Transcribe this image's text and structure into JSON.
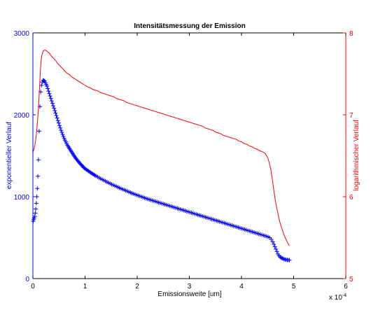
{
  "chart_data": {
    "type": "line",
    "title": "Intensitätsmessung der Emission",
    "xlabel": "Emissionsweite [um]",
    "x_multiplier_label": "x 10",
    "x_multiplier_exponent": "-4",
    "ylabel_left": "exponentieller Verlauf",
    "ylabel_right": "logarithmischer Verlauf",
    "xlim": [
      0,
      0.0006
    ],
    "ylim_left": [
      0,
      3000
    ],
    "ylim_right": [
      5,
      8
    ],
    "x_ticks": [
      0,
      0.0001,
      0.0002,
      0.0003,
      0.0004,
      0.0005,
      0.0006
    ],
    "x_tick_labels": [
      "0",
      "1",
      "2",
      "3",
      "4",
      "5",
      "6"
    ],
    "y_left_ticks": [
      0,
      1000,
      2000,
      3000
    ],
    "y_left_tick_labels": [
      "0",
      "1000",
      "2000",
      "3000"
    ],
    "y_right_ticks": [
      5,
      6,
      7,
      8
    ],
    "y_right_tick_labels": [
      "5",
      "6",
      "7",
      "8"
    ],
    "grid": false,
    "colors": {
      "left_axis": "#0000ff",
      "right_axis": "#ff0000",
      "frame": "#000000"
    },
    "series": [
      {
        "axis": "left",
        "marker": "+",
        "color": "#0000ff",
        "x": [
          5e-07,
          1.5e-06,
          2.5e-06,
          3.5e-06,
          4.5e-06,
          5.5e-06,
          6.5e-06,
          7.5e-06,
          8.5e-06,
          9.5e-06,
          1.05e-05,
          1.2e-05,
          1.35e-05,
          1.5e-05,
          1.65e-05,
          1.8e-05,
          1.95e-05,
          2.1e-05,
          2.25e-05,
          2.4e-05,
          2.55e-05,
          2.7e-05,
          2.85e-05,
          3e-05,
          3.15e-05,
          3.3e-05,
          3.45e-05,
          3.6e-05,
          3.75e-05,
          3.9e-05,
          4.05e-05,
          4.2e-05,
          4.35e-05,
          4.5e-05,
          4.65e-05,
          4.8e-05,
          4.95e-05,
          5.1e-05,
          5.25e-05,
          5.4e-05,
          5.55e-05,
          5.7e-05,
          5.85e-05,
          6e-05,
          6.15e-05,
          6.3e-05,
          6.45e-05,
          6.6e-05,
          6.75e-05,
          6.9e-05,
          7.05e-05,
          7.2e-05,
          7.35e-05,
          7.5e-05,
          7.65e-05,
          7.8e-05,
          7.95e-05,
          8.1e-05,
          8.25e-05,
          8.4e-05,
          8.55e-05,
          8.7e-05,
          8.85e-05,
          9e-05,
          9.15e-05,
          9.3e-05,
          9.45e-05,
          9.6e-05,
          9.75e-05,
          9.9e-05,
          0.000101,
          0.000103,
          0.000105,
          0.000107,
          0.000109,
          0.000111,
          0.000113,
          0.000115,
          0.000117,
          0.000119,
          0.000121,
          0.000124,
          0.000127,
          0.00013,
          0.000133,
          0.000136,
          0.000139,
          0.000142,
          0.000145,
          0.000148,
          0.000151,
          0.000154,
          0.000157,
          0.00016,
          0.000163,
          0.000166,
          0.000169,
          0.000172,
          0.000175,
          0.000178,
          0.000181,
          0.000184,
          0.000187,
          0.00019,
          0.000193,
          0.000196,
          0.000199,
          0.000202,
          0.000205,
          0.000208,
          0.000211,
          0.000214,
          0.000217,
          0.00022,
          0.000223,
          0.000226,
          0.000229,
          0.000232,
          0.000235,
          0.000238,
          0.000241,
          0.000244,
          0.000247,
          0.00025,
          0.000253,
          0.000256,
          0.000259,
          0.000262,
          0.000265,
          0.000268,
          0.000271,
          0.000274,
          0.000277,
          0.00028,
          0.000283,
          0.000286,
          0.000289,
          0.000292,
          0.000295,
          0.000298,
          0.000301,
          0.000304,
          0.000307,
          0.00031,
          0.000313,
          0.000316,
          0.000319,
          0.000322,
          0.000325,
          0.000328,
          0.000331,
          0.000334,
          0.000337,
          0.00034,
          0.000343,
          0.000346,
          0.000349,
          0.000352,
          0.000355,
          0.000358,
          0.000361,
          0.000364,
          0.000367,
          0.00037,
          0.000373,
          0.000376,
          0.000379,
          0.000382,
          0.000385,
          0.000388,
          0.000391,
          0.000394,
          0.000397,
          0.0004,
          0.000403,
          0.000406,
          0.000409,
          0.000412,
          0.000415,
          0.000418,
          0.000421,
          0.000424,
          0.000427,
          0.00043,
          0.000433,
          0.000436,
          0.000439,
          0.000442,
          0.000445,
          0.000448,
          0.000451,
          0.000454,
          0.000457,
          0.00046,
          0.000462,
          0.000464,
          0.000466,
          0.000468,
          0.00047,
          0.000472,
          0.000474,
          0.000476,
          0.000478,
          0.00048,
          0.000482,
          0.000484,
          0.000486,
          0.000488,
          0.00049,
          0.000492
        ],
        "y": [
          700,
          720,
          740,
          760,
          800,
          850,
          920,
          1000,
          1100,
          1250,
          1450,
          1800,
          2100,
          2280,
          2360,
          2400,
          2420,
          2420,
          2410,
          2390,
          2370,
          2350,
          2320,
          2290,
          2260,
          2230,
          2200,
          2170,
          2140,
          2110,
          2080,
          2050,
          2020,
          1990,
          1960,
          1930,
          1900,
          1870,
          1840,
          1810,
          1785,
          1760,
          1735,
          1710,
          1690,
          1670,
          1650,
          1630,
          1615,
          1600,
          1585,
          1570,
          1555,
          1540,
          1525,
          1510,
          1495,
          1480,
          1468,
          1455,
          1443,
          1431,
          1420,
          1409,
          1398,
          1387,
          1377,
          1367,
          1357,
          1347,
          1338,
          1329,
          1320,
          1311,
          1302,
          1293,
          1285,
          1277,
          1269,
          1261,
          1253,
          1242,
          1231,
          1220,
          1210,
          1200,
          1190,
          1180,
          1170,
          1161,
          1152,
          1143,
          1134,
          1125,
          1116,
          1107,
          1099,
          1091,
          1083,
          1075,
          1067,
          1059,
          1051,
          1043,
          1035,
          1028,
          1021,
          1014,
          1007,
          1000,
          993,
          986,
          979,
          972,
          966,
          960,
          954,
          948,
          942,
          936,
          930,
          924,
          918,
          912,
          906,
          900,
          894,
          888,
          882,
          876,
          870,
          864,
          858,
          852,
          846,
          840,
          834,
          828,
          822,
          816,
          810,
          804,
          798,
          792,
          786,
          780,
          774,
          768,
          762,
          756,
          750,
          744,
          738,
          732,
          726,
          720,
          714,
          708,
          702,
          696,
          690,
          684,
          678,
          672,
          666,
          660,
          654,
          648,
          642,
          636,
          630,
          624,
          618,
          612,
          606,
          600,
          594,
          588,
          582,
          576,
          570,
          564,
          558,
          552,
          546,
          540,
          534,
          528,
          522,
          516,
          510,
          500,
          480,
          450,
          420,
          390,
          360,
          330,
          300,
          280,
          265,
          255,
          248,
          242,
          237,
          233,
          230,
          228,
          226,
          225
        ]
      },
      {
        "axis": "right",
        "marker": "line",
        "color": "#ff0000",
        "x": [
          5e-07,
          2e-06,
          3.5e-06,
          5e-06,
          6.5e-06,
          8e-06,
          9.5e-06,
          1.1e-05,
          1.25e-05,
          1.4e-05,
          1.55e-05,
          1.7e-05,
          1.85e-05,
          2e-05,
          2.2e-05,
          2.4e-05,
          2.6e-05,
          2.8e-05,
          3e-05,
          3.2e-05,
          3.5e-05,
          3.8e-05,
          4.1e-05,
          4.4e-05,
          4.7e-05,
          5e-05,
          5.3e-05,
          5.6e-05,
          5.9e-05,
          6.2e-05,
          6.5e-05,
          7e-05,
          7.5e-05,
          8e-05,
          8.5e-05,
          9e-05,
          9.5e-05,
          0.0001,
          0.000105,
          0.00011,
          0.000115,
          0.00012,
          0.000125,
          0.00013,
          0.000135,
          0.00014,
          0.000145,
          0.00015,
          0.000155,
          0.00016,
          0.000165,
          0.00017,
          0.000175,
          0.00018,
          0.000185,
          0.00019,
          0.000195,
          0.0002,
          0.000205,
          0.00021,
          0.000215,
          0.00022,
          0.000225,
          0.00023,
          0.000235,
          0.00024,
          0.000245,
          0.00025,
          0.000255,
          0.00026,
          0.000265,
          0.00027,
          0.000275,
          0.00028,
          0.000285,
          0.00029,
          0.000295,
          0.0003,
          0.000305,
          0.00031,
          0.000315,
          0.00032,
          0.000325,
          0.00033,
          0.000335,
          0.00034,
          0.000345,
          0.00035,
          0.000355,
          0.00036,
          0.000365,
          0.00037,
          0.000375,
          0.00038,
          0.000385,
          0.00039,
          0.000395,
          0.0004,
          0.000405,
          0.00041,
          0.000415,
          0.00042,
          0.000425,
          0.00043,
          0.000435,
          0.00044,
          0.000445,
          0.00045,
          0.000453,
          0.000456,
          0.000459,
          0.000462,
          0.000465,
          0.000468,
          0.000471,
          0.000474,
          0.000477,
          0.00048,
          0.000483,
          0.000486,
          0.000489,
          0.000492
        ],
        "y": [
          6.55,
          6.58,
          6.62,
          6.68,
          6.75,
          6.85,
          6.98,
          7.12,
          7.3,
          7.5,
          7.65,
          7.72,
          7.76,
          7.78,
          7.79,
          7.79,
          7.78,
          7.77,
          7.76,
          7.75,
          7.72,
          7.7,
          7.68,
          7.66,
          7.63,
          7.61,
          7.59,
          7.57,
          7.55,
          7.53,
          7.51,
          7.49,
          7.46,
          7.44,
          7.42,
          7.4,
          7.38,
          7.36,
          7.34,
          7.33,
          7.31,
          7.3,
          7.29,
          7.27,
          7.26,
          7.25,
          7.24,
          7.23,
          7.22,
          7.2,
          7.19,
          7.18,
          7.17,
          7.15,
          7.14,
          7.13,
          7.12,
          7.11,
          7.1,
          7.09,
          7.08,
          7.07,
          7.06,
          7.05,
          7.04,
          7.03,
          7.02,
          7.01,
          7.0,
          6.99,
          6.98,
          6.97,
          6.96,
          6.95,
          6.94,
          6.93,
          6.92,
          6.91,
          6.9,
          6.89,
          6.88,
          6.87,
          6.86,
          6.84,
          6.83,
          6.82,
          6.81,
          6.79,
          6.78,
          6.77,
          6.75,
          6.74,
          6.73,
          6.72,
          6.71,
          6.7,
          6.68,
          6.67,
          6.65,
          6.64,
          6.62,
          6.61,
          6.59,
          6.58,
          6.56,
          6.55,
          6.53,
          6.48,
          6.42,
          6.34,
          6.22,
          6.08,
          5.95,
          5.85,
          5.76,
          5.68,
          5.62,
          5.56,
          5.51,
          5.47,
          5.43,
          5.4
        ]
      }
    ]
  }
}
